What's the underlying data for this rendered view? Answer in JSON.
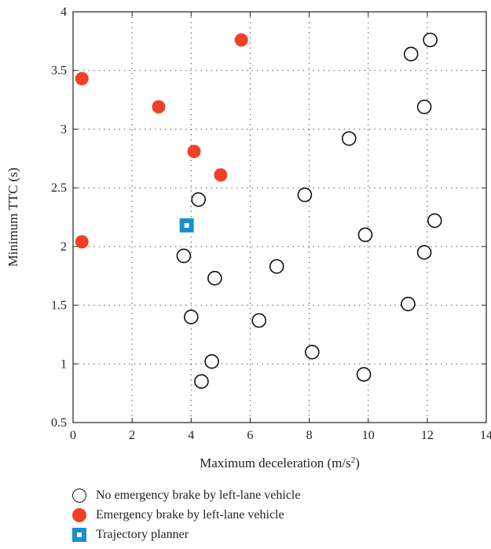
{
  "chart_data": {
    "type": "scatter",
    "xlabel": "Maximum deceleration (m/s",
    "xlabel_sup": "2",
    "xlabel_end": ")",
    "ylabel": "Minimum TTC (s)",
    "xlim": [
      0,
      14
    ],
    "ylim": [
      0.5,
      4
    ],
    "xticks": [
      "0",
      "2",
      "4",
      "6",
      "8",
      "10",
      "12",
      "14"
    ],
    "yticks": [
      "0.5",
      "1",
      "1.5",
      "2",
      "2.5",
      "3",
      "3.5",
      "4"
    ],
    "grid": true,
    "legend_position": "bottom",
    "series": [
      {
        "name": "No emergency brake by left-lane vehicle",
        "marker": "open-circle",
        "color": "#111111",
        "points": [
          [
            12.1,
            3.76
          ],
          [
            11.45,
            3.64
          ],
          [
            11.9,
            3.19
          ],
          [
            9.35,
            2.92
          ],
          [
            4.25,
            2.4
          ],
          [
            7.85,
            2.44
          ],
          [
            12.25,
            2.22
          ],
          [
            9.9,
            2.1
          ],
          [
            3.75,
            1.92
          ],
          [
            11.9,
            1.95
          ],
          [
            4.8,
            1.73
          ],
          [
            6.9,
            1.83
          ],
          [
            11.35,
            1.51
          ],
          [
            4.0,
            1.4
          ],
          [
            6.3,
            1.37
          ],
          [
            8.1,
            1.1
          ],
          [
            4.7,
            1.02
          ],
          [
            9.85,
            0.91
          ],
          [
            4.35,
            0.85
          ]
        ]
      },
      {
        "name": "Emergency brake by left-lane vehicle",
        "marker": "filled-circle",
        "color": "#ef4123",
        "points": [
          [
            5.7,
            3.76
          ],
          [
            0.3,
            3.43
          ],
          [
            2.9,
            3.19
          ],
          [
            4.1,
            2.81
          ],
          [
            5.0,
            2.61
          ],
          [
            0.3,
            2.04
          ]
        ]
      },
      {
        "name": "Trajectory planner",
        "marker": "square",
        "color": "#1a8fd0",
        "points": [
          [
            3.85,
            2.18
          ]
        ]
      }
    ]
  }
}
